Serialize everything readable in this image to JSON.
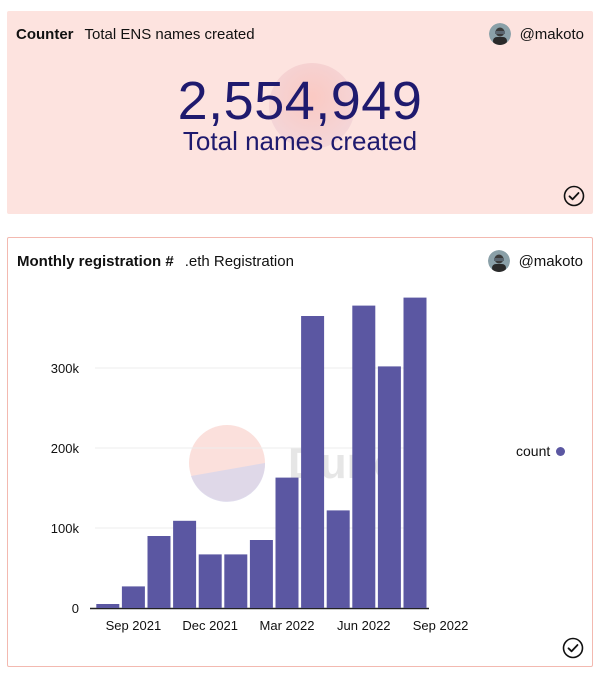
{
  "counter_card": {
    "title": "Counter",
    "subtitle": "Total ENS names created",
    "author": "@makoto",
    "value": "2,554,949",
    "value_label": "Total names created"
  },
  "chart_card": {
    "title": "Monthly registration #",
    "subtitle": ".eth Registration",
    "author": "@makoto",
    "watermark": "Dune"
  },
  "icons": {
    "avatar": "avatar-icon",
    "check": "check-circle-icon"
  },
  "colors": {
    "counter_bg": "#fde3df",
    "counter_text": "#1f1a6e",
    "bar": "#5b57a2",
    "card_border": "#f3b9b0"
  },
  "chart_data": {
    "type": "bar",
    "title": "Monthly registration #",
    "xlabel": "",
    "ylabel": "",
    "categories": [
      "Aug 2021",
      "Sep 2021",
      "Oct 2021",
      "Nov 2021",
      "Dec 2021",
      "Jan 2022",
      "Feb 2022",
      "Mar 2022",
      "Apr 2022",
      "May 2022",
      "Jun 2022",
      "Jul 2022",
      "Aug 2022",
      "Sep 2022"
    ],
    "series": [
      {
        "name": "count",
        "values": [
          5000,
          27000,
          90000,
          109000,
          67000,
          67000,
          85000,
          163000,
          365000,
          122000,
          378000,
          302000,
          388000,
          0
        ]
      }
    ],
    "x_tick_labels": [
      "Sep 2021",
      "Dec 2021",
      "Mar 2022",
      "Jun 2022",
      "Sep 2022"
    ],
    "y_tick_values": [
      0,
      100000,
      200000,
      300000
    ],
    "y_tick_labels": [
      "0",
      "100k",
      "200k",
      "300k"
    ],
    "ylim": [
      0,
      400000
    ],
    "grid": true,
    "legend": "right"
  }
}
